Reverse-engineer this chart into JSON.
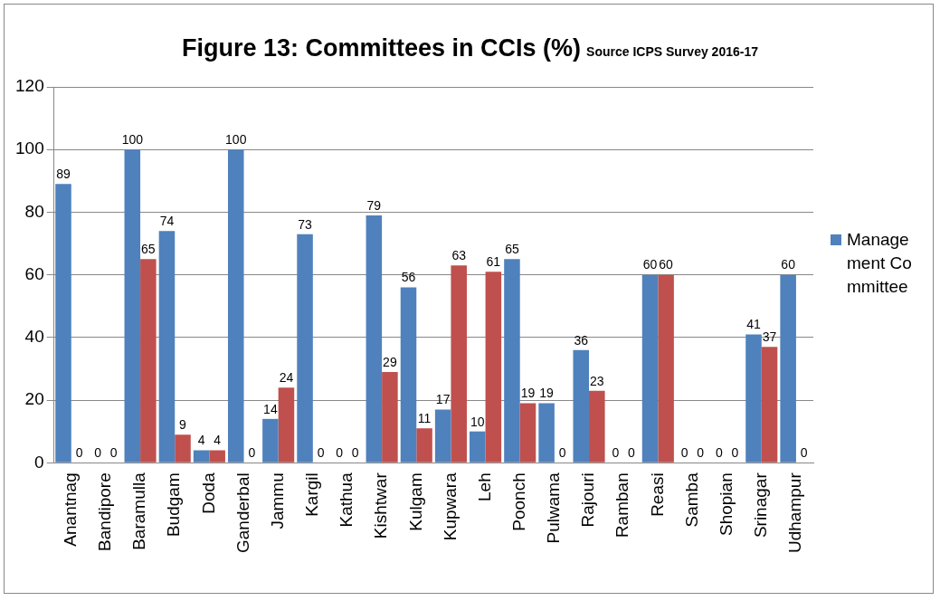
{
  "chart_data": {
    "type": "bar",
    "title": "Figure 13: Committees in CCIs (%)",
    "annotations": [
      "Source ICPS Survey 2016-17"
    ],
    "categories": [
      "Anantnag",
      "Bandipore",
      "Baramulla",
      "Budgam",
      "Doda",
      "Ganderbal",
      "Jammu",
      "Kargil",
      "Kathua",
      "Kishtwar",
      "Kulgam",
      "Kupwara",
      "Leh",
      "Poonch",
      "Pulwama",
      "Rajouri",
      "Ramban",
      "Reasi",
      "Samba",
      "Shopian",
      "Srinagar",
      "Udhampur"
    ],
    "series": [
      {
        "name": "Management Committee",
        "color": "#4f81bd",
        "values": [
          89,
          0,
          100,
          74,
          4,
          100,
          14,
          73,
          0,
          79,
          56,
          17,
          10,
          65,
          19,
          36,
          0,
          60,
          0,
          0,
          41,
          60
        ]
      },
      {
        "color": "#c0504d",
        "values": [
          0,
          0,
          65,
          9,
          4,
          0,
          24,
          0,
          0,
          29,
          11,
          63,
          61,
          19,
          0,
          23,
          0,
          60,
          0,
          0,
          37,
          0
        ]
      }
    ],
    "ylim": [
      0,
      120
    ],
    "yticks": [
      0,
      20,
      40,
      60,
      80,
      100,
      120
    ],
    "grid": "y",
    "legend": "right",
    "data_labels": true
  }
}
